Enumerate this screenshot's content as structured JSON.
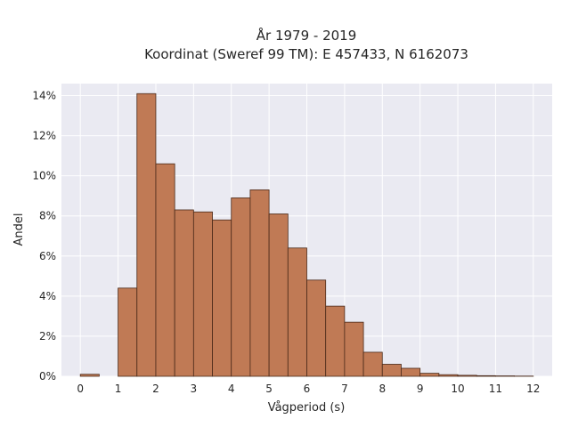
{
  "chart_data": {
    "type": "bar",
    "title_line1": "År 1979 - 2019",
    "title_line2": "Koordinat (Sweref 99 TM): E 457433, N 6162073",
    "xlabel": "Vågperiod (s)",
    "ylabel": "Andel",
    "bin_width": 0.5,
    "bins": [
      {
        "start": 0.0,
        "value": 0.1
      },
      {
        "start": 0.5,
        "value": 0.0
      },
      {
        "start": 1.0,
        "value": 4.4
      },
      {
        "start": 1.5,
        "value": 14.1
      },
      {
        "start": 2.0,
        "value": 10.6
      },
      {
        "start": 2.5,
        "value": 8.3
      },
      {
        "start": 3.0,
        "value": 8.2
      },
      {
        "start": 3.5,
        "value": 7.8
      },
      {
        "start": 4.0,
        "value": 8.9
      },
      {
        "start": 4.5,
        "value": 9.3
      },
      {
        "start": 5.0,
        "value": 8.1
      },
      {
        "start": 5.5,
        "value": 6.4
      },
      {
        "start": 6.0,
        "value": 4.8
      },
      {
        "start": 6.5,
        "value": 3.5
      },
      {
        "start": 7.0,
        "value": 2.7
      },
      {
        "start": 7.5,
        "value": 1.2
      },
      {
        "start": 8.0,
        "value": 0.6
      },
      {
        "start": 8.5,
        "value": 0.4
      },
      {
        "start": 9.0,
        "value": 0.15
      },
      {
        "start": 9.5,
        "value": 0.08
      },
      {
        "start": 10.0,
        "value": 0.05
      },
      {
        "start": 10.5,
        "value": 0.03
      },
      {
        "start": 11.0,
        "value": 0.02
      },
      {
        "start": 11.5,
        "value": 0.01
      }
    ],
    "xlim": [
      -0.5,
      12.5
    ],
    "ylim": [
      0,
      14.6
    ],
    "xticks": [
      0,
      1,
      2,
      3,
      4,
      5,
      6,
      7,
      8,
      9,
      10,
      11,
      12
    ],
    "yticks": [
      0,
      2,
      4,
      6,
      8,
      10,
      12,
      14
    ],
    "ytick_labels": [
      "0%",
      "2%",
      "4%",
      "6%",
      "8%",
      "10%",
      "12%",
      "14%"
    ],
    "grid": true,
    "colors": {
      "bar_fill": "#c07a55",
      "bar_edge": "#4a2a1a",
      "plot_bg": "#eaeaf2",
      "grid": "#ffffff"
    }
  }
}
